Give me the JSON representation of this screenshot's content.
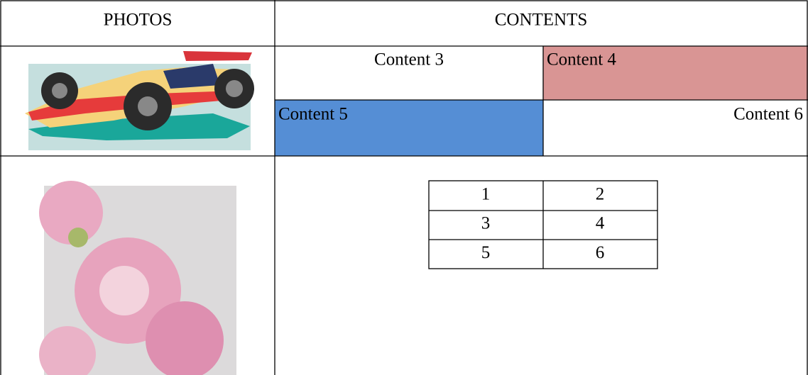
{
  "header": {
    "photos": "PHOTOS",
    "contents": "CONTENTS"
  },
  "contents": [
    "Content 3",
    "Content 4",
    "Content 5",
    "Content 6"
  ],
  "table": {
    "rows": [
      [
        "1",
        "2"
      ],
      [
        "3",
        "4"
      ],
      [
        "5",
        "6"
      ]
    ]
  }
}
